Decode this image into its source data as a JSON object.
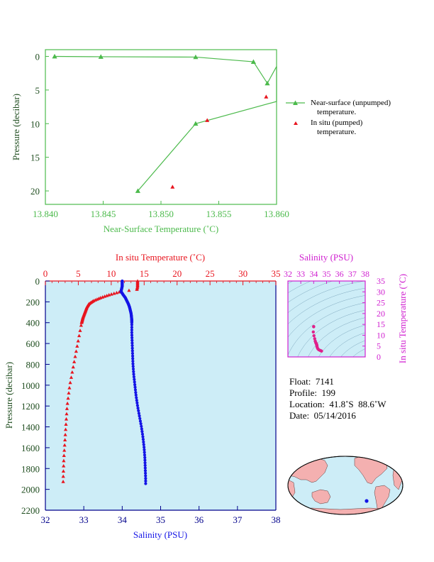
{
  "colors": {
    "green": "#4cba4c",
    "red": "#e8141e",
    "blue": "#1414e6",
    "magenta": "#d020d0",
    "axis_dark": "#00008b",
    "panel_bg": "#cdedf7",
    "land": "#f4b0b0",
    "ocean": "#cdedf7"
  },
  "info": {
    "float_label": "Float:",
    "float_value": "7141",
    "profile_label": "Profile:",
    "profile_value": "199",
    "location_label": "Location:",
    "location_value": "41.8˚S  88.6˚W",
    "date_label": "Date:",
    "date_value": "05/14/2016"
  },
  "chart_data": [
    {
      "type": "line",
      "xlabel": "Near-Surface Temperature (˚C)",
      "ylabel": "Pressure (decibar)",
      "xlim": [
        13.84,
        13.86
      ],
      "ylim": [
        22,
        -1
      ],
      "xticks": [
        "13.840",
        "13.845",
        "13.850",
        "13.855",
        "13.860"
      ],
      "yticks": [
        "0",
        "5",
        "10",
        "15",
        "20"
      ],
      "legend": [
        "Near-surface (unpumped)",
        "temperature.",
        "In situ (pumped)",
        "temperature."
      ],
      "legend_position": "right",
      "series": [
        {
          "name": "Near-surface (unpumped) temperature.",
          "marker": "triangle",
          "line": true,
          "x": [
            13.8408,
            13.8448,
            13.853,
            13.858,
            13.8592,
            13.8605,
            13.8605,
            13.853,
            13.848
          ],
          "y": [
            0,
            0.05,
            0.1,
            0.8,
            4.0,
            1.5,
            6.7,
            10.0,
            20.0
          ]
        },
        {
          "name": "In situ (pumped) temperature.",
          "marker": "triangle",
          "line": false,
          "x": [
            13.8591,
            13.854,
            13.851
          ],
          "y": [
            6.0,
            9.5,
            19.4
          ]
        }
      ]
    },
    {
      "type": "scatter",
      "xlabel_bottom": "Salinity (PSU)",
      "xlabel_top": "In situ Temperature (˚C)",
      "ylabel": "Pressure (decibar)",
      "salinity_lim": [
        32,
        38
      ],
      "temperature_lim": [
        0,
        35
      ],
      "pressure_lim": [
        2200,
        0
      ],
      "salinity_ticks": [
        "32",
        "33",
        "34",
        "35",
        "36",
        "37",
        "38"
      ],
      "temperature_ticks": [
        "0",
        "5",
        "10",
        "15",
        "20",
        "25",
        "30",
        "35"
      ],
      "pressure_ticks": [
        "0",
        "200",
        "400",
        "600",
        "800",
        "1000",
        "1200",
        "1400",
        "1600",
        "1800",
        "2000",
        "2200"
      ],
      "temperature_profile": {
        "pressure": [
          0,
          50,
          80,
          100,
          130,
          160,
          190,
          220,
          250,
          300,
          350,
          400,
          500,
          600,
          700,
          800,
          900,
          1000,
          1100,
          1200,
          1300,
          1400,
          1500,
          1600,
          1700,
          1800,
          1900,
          1950
        ],
        "value": [
          14.0,
          14.0,
          13.9,
          11.5,
          9.8,
          8.4,
          7.3,
          6.6,
          6.3,
          6.0,
          5.7,
          5.5,
          5.2,
          4.9,
          4.6,
          4.3,
          4.0,
          3.7,
          3.5,
          3.3,
          3.2,
          3.1,
          3.0,
          2.9,
          2.8,
          2.75,
          2.7,
          2.7
        ]
      },
      "salinity_profile": {
        "pressure": [
          0,
          50,
          100,
          130,
          160,
          190,
          220,
          250,
          280,
          310,
          340,
          380,
          400,
          500,
          600,
          700,
          800,
          900,
          1000,
          1100,
          1200,
          1300,
          1400,
          1500,
          1600,
          1700,
          1800,
          1900,
          1950
        ],
        "value": [
          34.0,
          34.0,
          33.97,
          34.02,
          34.08,
          34.12,
          34.16,
          34.19,
          34.21,
          34.23,
          34.24,
          34.25,
          34.25,
          34.25,
          34.26,
          34.27,
          34.28,
          34.3,
          34.33,
          34.36,
          34.4,
          34.45,
          34.5,
          34.54,
          34.57,
          34.59,
          34.6,
          34.61,
          34.61
        ]
      }
    },
    {
      "type": "scatter",
      "xlabel": "Salinity (PSU)",
      "ylabel": "In situ Temperature (˚C)",
      "xlim": [
        32,
        38
      ],
      "ylim": [
        0,
        35
      ],
      "xticks": [
        "32",
        "33",
        "34",
        "35",
        "36",
        "37",
        "38"
      ],
      "yticks": [
        "0",
        "5",
        "10",
        "15",
        "20",
        "25",
        "30",
        "35"
      ],
      "salinity": [
        34.0,
        34.0,
        33.97,
        34.02,
        34.08,
        34.12,
        34.16,
        34.19,
        34.21,
        34.23,
        34.24,
        34.25,
        34.25,
        34.26,
        34.28,
        34.33,
        34.4,
        34.5,
        34.57,
        34.61
      ],
      "temperature": [
        14.0,
        13.9,
        11.5,
        9.8,
        8.4,
        7.3,
        6.6,
        6.3,
        6.0,
        5.7,
        5.5,
        5.3,
        5.0,
        4.8,
        4.3,
        3.7,
        3.3,
        3.0,
        2.8,
        2.7
      ]
    }
  ],
  "map": {
    "marker_location": "41.8˚S 88.6˚W"
  }
}
